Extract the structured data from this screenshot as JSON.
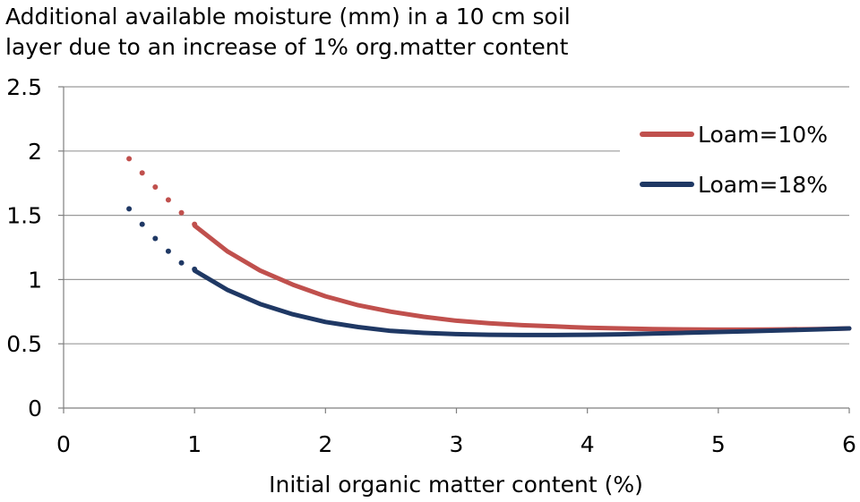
{
  "chart_data": {
    "type": "line",
    "title_lines": [
      "Additional available moisture (mm) in a 10 cm soil",
      "layer due to an increase of 1% org.matter content"
    ],
    "xlabel": "Initial organic matter content (%)",
    "ylabel": "",
    "xlim": [
      0,
      6
    ],
    "ylim": [
      0,
      2.5
    ],
    "xticks": [
      "0",
      "1",
      "2",
      "3",
      "4",
      "5",
      "6"
    ],
    "yticks": [
      "0",
      "0.5",
      "1",
      "1.5",
      "2",
      "2.5"
    ],
    "grid": "horizontal",
    "legend_position": "top-right",
    "series": [
      {
        "name": "Loam=10%",
        "color": "#c0504d",
        "dotted_x": [
          0.5,
          0.6,
          0.7,
          0.8,
          0.9,
          1.0
        ],
        "dotted_y": [
          1.94,
          1.83,
          1.72,
          1.62,
          1.52,
          1.43
        ],
        "x": [
          1.0,
          1.25,
          1.5,
          1.75,
          2.0,
          2.25,
          2.5,
          2.75,
          3.0,
          3.25,
          3.5,
          3.75,
          4.0,
          4.25,
          4.5,
          4.75,
          5.0,
          5.25,
          5.5,
          5.75,
          6.0
        ],
        "y": [
          1.42,
          1.22,
          1.07,
          0.96,
          0.87,
          0.8,
          0.75,
          0.71,
          0.68,
          0.66,
          0.645,
          0.635,
          0.625,
          0.62,
          0.615,
          0.612,
          0.61,
          0.61,
          0.612,
          0.615,
          0.62
        ]
      },
      {
        "name": "Loam=18%",
        "color": "#1f3864",
        "dotted_x": [
          0.5,
          0.6,
          0.7,
          0.8,
          0.9,
          1.0
        ],
        "dotted_y": [
          1.55,
          1.43,
          1.32,
          1.22,
          1.13,
          1.08
        ],
        "x": [
          1.0,
          1.25,
          1.5,
          1.75,
          2.0,
          2.25,
          2.5,
          2.75,
          3.0,
          3.25,
          3.5,
          3.75,
          4.0,
          4.25,
          4.5,
          4.75,
          5.0,
          5.25,
          5.5,
          5.75,
          6.0
        ],
        "y": [
          1.07,
          0.92,
          0.81,
          0.73,
          0.67,
          0.63,
          0.6,
          0.585,
          0.575,
          0.57,
          0.568,
          0.568,
          0.57,
          0.574,
          0.58,
          0.586,
          0.592,
          0.598,
          0.605,
          0.612,
          0.62
        ]
      }
    ]
  }
}
